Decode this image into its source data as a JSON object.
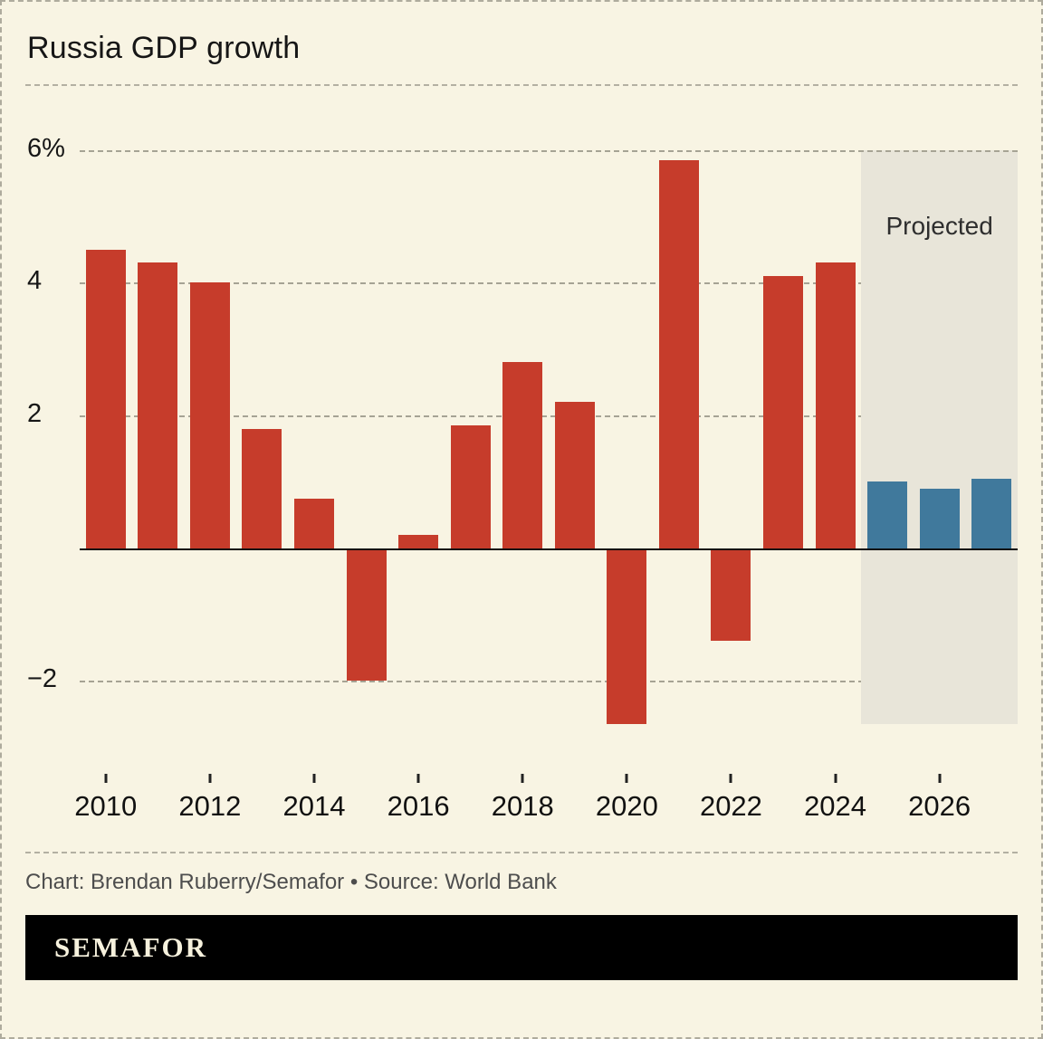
{
  "title": "Russia GDP growth",
  "credit": "Chart: Brendan Ruberry/Semafor • Source: World Bank",
  "brand": "SEMAFOR",
  "chart_data": {
    "type": "bar",
    "title": "Russia GDP growth",
    "x": [
      2010,
      2011,
      2012,
      2013,
      2014,
      2015,
      2016,
      2017,
      2018,
      2019,
      2020,
      2021,
      2022,
      2023,
      2024,
      2025,
      2026,
      2027
    ],
    "values": [
      4.5,
      4.3,
      4.0,
      1.8,
      0.75,
      -2.0,
      0.2,
      1.85,
      2.8,
      2.2,
      -2.65,
      5.85,
      -1.4,
      4.1,
      4.3,
      1.0,
      0.9,
      1.05
    ],
    "unit": "%",
    "projected_from": 2025,
    "projected_label": "Projected",
    "bar_color": "#c63c2b",
    "projected_bar_color": "#40799c",
    "projected_region_color": "#e8e5d9",
    "ylim": [
      -2.8,
      6.2
    ],
    "yticks": [
      {
        "value": 6,
        "label": "6%"
      },
      {
        "value": 4,
        "label": "4"
      },
      {
        "value": 2,
        "label": "2"
      },
      {
        "value": -2,
        "label": "−2"
      }
    ],
    "xtick_labels": [
      "2010",
      "2012",
      "2014",
      "2016",
      "2018",
      "2020",
      "2022",
      "2024",
      "2026"
    ],
    "grid": "dashed horizontal",
    "source": "World Bank"
  }
}
